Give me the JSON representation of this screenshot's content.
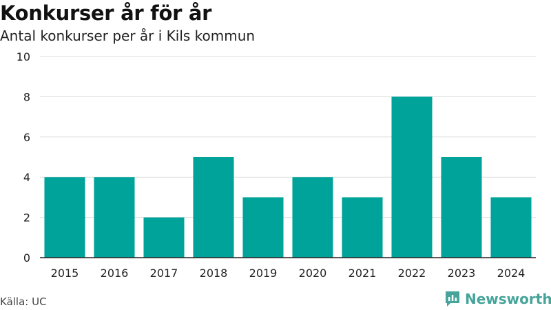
{
  "header": {
    "title": "Konkurser år för år",
    "subtitle": "Antal konkurser per år i Kils kommun"
  },
  "footer": {
    "source": "Källa: UC",
    "brand": "Newsworthy"
  },
  "colors": {
    "bar": "#00a39a",
    "grid": "#dddddd",
    "axis": "#222222",
    "brand": "#46a49a"
  },
  "chart_data": {
    "type": "bar",
    "categories": [
      "2015",
      "2016",
      "2017",
      "2018",
      "2019",
      "2020",
      "2021",
      "2022",
      "2023",
      "2024"
    ],
    "values": [
      4,
      4,
      2,
      5,
      3,
      4,
      3,
      8,
      5,
      3
    ],
    "title": "Konkurser år för år",
    "subtitle": "Antal konkurser per år i Kils kommun",
    "xlabel": "",
    "ylabel": "",
    "ylim": [
      0,
      10
    ],
    "yticks": [
      0,
      2,
      4,
      6,
      8,
      10
    ],
    "grid": true,
    "legend": "none"
  }
}
